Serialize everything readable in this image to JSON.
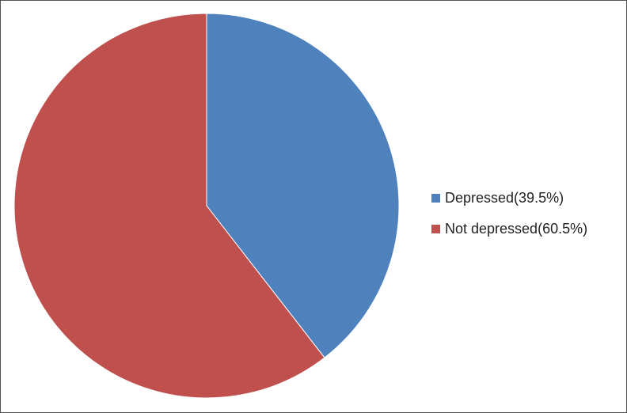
{
  "chart_data": {
    "type": "pie",
    "categories": [
      "Depressed(39.5%)",
      "Not depressed(60.5%)"
    ],
    "values": [
      39.5,
      60.5
    ],
    "colors": [
      "#4F81BD",
      "#C0504D"
    ],
    "start_angle": "12 o'clock, clockwise",
    "legend_position": "right"
  }
}
